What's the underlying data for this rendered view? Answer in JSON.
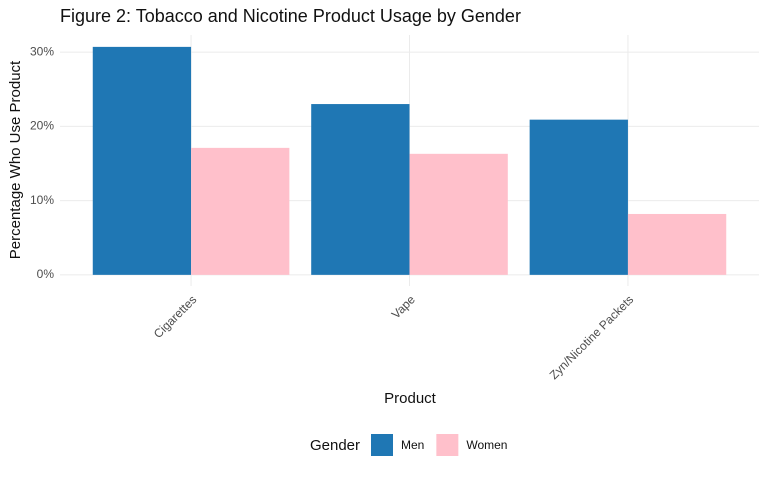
{
  "chart_data": {
    "type": "bar",
    "title": "Figure 2: Tobacco and Nicotine Product Usage by Gender",
    "x_label": "Product",
    "y_label": "Percentage Who Use Product",
    "categories": [
      "Cigarettes",
      "Vape",
      "Zyn/Nicotine Packets"
    ],
    "series": [
      {
        "name": "Men",
        "color": "#1f77b4",
        "values": [
          30.7,
          23.0,
          20.9
        ]
      },
      {
        "name": "Women",
        "color": "#ffc0cb",
        "values": [
          17.1,
          16.3,
          8.2
        ]
      }
    ],
    "ylim": [
      -1.5,
      32.3
    ],
    "yticks": [
      {
        "value": 0,
        "label": "0%"
      },
      {
        "value": 10,
        "label": "10%"
      },
      {
        "value": 20,
        "label": "20%"
      },
      {
        "value": 30,
        "label": "30%"
      }
    ],
    "grid": true,
    "legend_title": "Gender",
    "legend_position": "bottom"
  }
}
